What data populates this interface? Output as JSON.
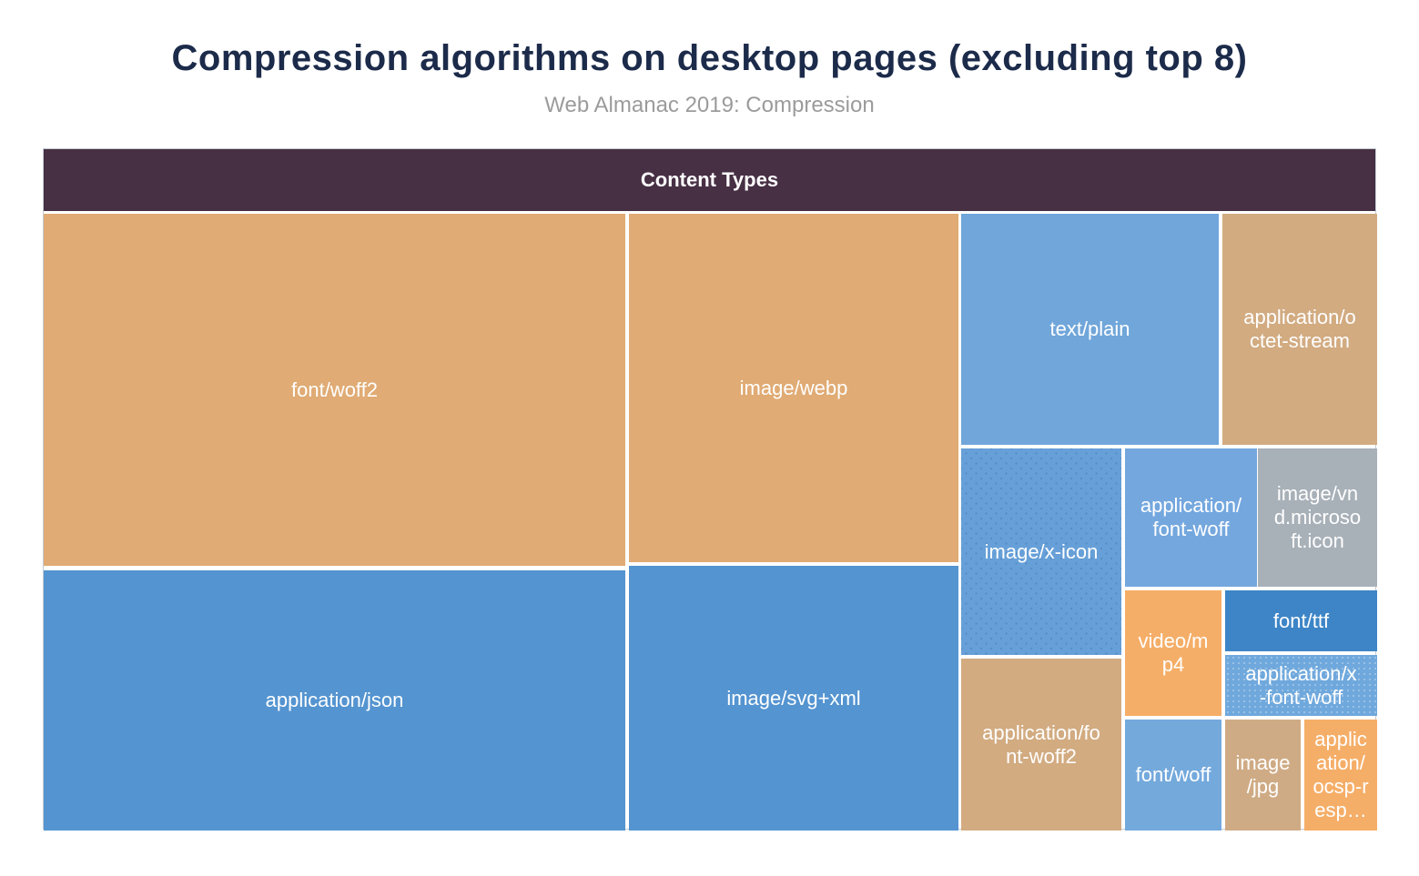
{
  "page": {
    "title": "Compression algorithms on desktop pages (excluding top 8)",
    "subtitle": "Web Almanac 2019: Compression"
  },
  "treemap": {
    "header": "Content Types",
    "cells": [
      {
        "name": "font/woff2",
        "display": "font/woff2",
        "color": "#e0ab74"
      },
      {
        "name": "image/webp",
        "display": "image/webp",
        "color": "#e0ab74"
      },
      {
        "name": "text/plain",
        "display": "text/plain",
        "color": "#70a6da"
      },
      {
        "name": "application/octet-stream",
        "display": "application/o\nctet-stream",
        "color": "#d2ab81"
      },
      {
        "name": "image/x-icon",
        "display": "image/x-icon",
        "color": "#67a0d8"
      },
      {
        "name": "application/font-woff",
        "display": "application/\nfont-woff",
        "color": "#74a7de"
      },
      {
        "name": "image/vnd.microsoft.icon",
        "display": "image/vn\nd.microso\nft.icon",
        "color": "#a8b0b8"
      },
      {
        "name": "application/json",
        "display": "application/json",
        "color": "#5494d0"
      },
      {
        "name": "image/svg+xml",
        "display": "image/svg+xml",
        "color": "#5494d0"
      },
      {
        "name": "video/mp4",
        "display": "video/m\np4",
        "color": "#f5ae68"
      },
      {
        "name": "font/ttf",
        "display": "font/ttf",
        "color": "#3d85c6"
      },
      {
        "name": "application/x-font-woff",
        "display": "application/x\n-font-woff",
        "color": "#6fa8dc"
      },
      {
        "name": "application/font-woff2",
        "display": "application/fo\nnt-woff2",
        "color": "#d2ab81"
      },
      {
        "name": "font/woff",
        "display": "font/woff",
        "color": "#74a9dc"
      },
      {
        "name": "image/jpg",
        "display": "image\n/jpg",
        "color": "#cfab85"
      },
      {
        "name": "application/ocsp-resp…",
        "display": "applic\nation/\nocsp-r\nesp…",
        "color": "#f5ae68"
      }
    ]
  },
  "chart_data": {
    "type": "treemap",
    "title": "Compression algorithms on desktop pages (excluding top 8)",
    "subtitle": "Web Almanac 2019: Compression",
    "group_label": "Content Types",
    "value_note": "values are estimated relative cell areas (% of total treemap)",
    "items": [
      {
        "name": "font/woff2",
        "share_pct_est": 25.4,
        "color": "#e0ab74"
      },
      {
        "name": "application/json",
        "share_pct_est": 18.8,
        "color": "#5494d0"
      },
      {
        "name": "image/webp",
        "share_pct_est": 14.2,
        "color": "#e0ab74"
      },
      {
        "name": "image/svg+xml",
        "share_pct_est": 10.8,
        "color": "#5494d0"
      },
      {
        "name": "text/plain",
        "share_pct_est": 7.4,
        "color": "#70a6da"
      },
      {
        "name": "application/octet-stream",
        "share_pct_est": 4.4,
        "color": "#d2ab81"
      },
      {
        "name": "image/x-icon",
        "share_pct_est": 4.1,
        "color": "#67a0d8"
      },
      {
        "name": "application/font-woff2",
        "share_pct_est": 3.4,
        "color": "#d2ab81"
      },
      {
        "name": "application/font-woff",
        "share_pct_est": 2.3,
        "color": "#74a7de"
      },
      {
        "name": "image/vnd.microsoft.icon",
        "share_pct_est": 2.1,
        "color": "#a8b0b8"
      },
      {
        "name": "video/mp4",
        "share_pct_est": 1.5,
        "color": "#f5ae68"
      },
      {
        "name": "font/woff",
        "share_pct_est": 1.3,
        "color": "#74a9dc"
      },
      {
        "name": "font/ttf",
        "share_pct_est": 1.1,
        "color": "#3d85c6"
      },
      {
        "name": "application/x-font-woff",
        "share_pct_est": 1.1,
        "color": "#6fa8dc"
      },
      {
        "name": "image/jpg",
        "share_pct_est": 1.0,
        "color": "#cfab85"
      },
      {
        "name": "application/ocsp-resp…",
        "share_pct_est": 1.0,
        "color": "#f5ae68"
      }
    ],
    "colors": {
      "header_band": "#472f44",
      "title_text": "#1c2b4a",
      "subtitle_text": "#9b9b9b",
      "cell_label_text": "#ffffff"
    }
  }
}
